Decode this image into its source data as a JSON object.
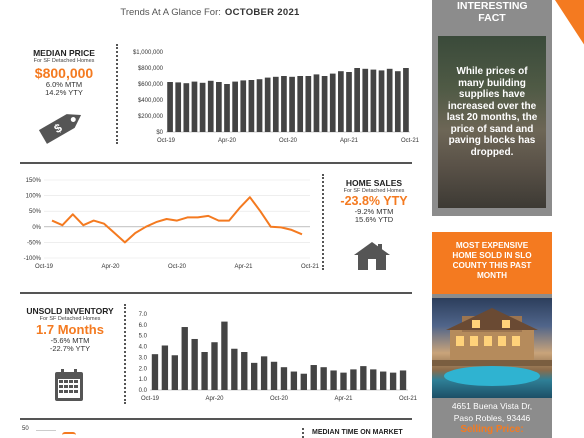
{
  "header": {
    "prefix": "Trends At A Glance For:",
    "month": "OCTOBER 2021"
  },
  "median_price": {
    "title": "MEDIAN PRICE",
    "subtitle": "For SF Detached Homes",
    "value": "$800,000",
    "mtm": "6.0% MTM",
    "ytd": "14.2% YTY",
    "icon": "price-tag-icon"
  },
  "home_sales": {
    "title": "HOME SALES",
    "subtitle": "For SF Detached Homes",
    "value": "-23.8% YTY",
    "mtm": "-9.2% MTM",
    "ytd": "15.6% YTD",
    "icon": "house-icon"
  },
  "unsold_inventory": {
    "title": "UNSOLD INVENTORY",
    "subtitle": "For SF Detached Homes",
    "value": "1.7 Months",
    "mtm": "-5.6% MTM",
    "ytd": "-22.7% YTY",
    "icon": "calendar-icon"
  },
  "median_time": {
    "title": "MEDIAN TIME ON MARKET",
    "axis_top": "50"
  },
  "sidebar": {
    "fact_title": "INTERESTING FACT",
    "fact_text": "While prices of many building supplies have increased over the last 20 months, the price of sand and paving blocks has dropped.",
    "expensive_title": "MOST EXPENSIVE HOME SOLD IN SLO COUNTY THIS PAST MONTH",
    "address_line1": "4651 Buena Vista Dr,",
    "address_line2": "Paso Robles, 93446",
    "selling_price_label": "Selling Price:"
  },
  "colors": {
    "accent": "#f47a20",
    "bar": "#444444",
    "sidebar_gray": "#8c8c8c"
  },
  "chart_data": [
    {
      "type": "bar",
      "name": "median-price",
      "x_tick_labels": [
        "Oct-19",
        "Apr-20",
        "Oct-20",
        "Apr-21",
        "Oct-21"
      ],
      "y_tick_labels": [
        "$0",
        "$200,000",
        "$400,000",
        "$600,000",
        "$800,000",
        "$1,000,000"
      ],
      "ylim": [
        0,
        1000000
      ],
      "values": [
        625000,
        620000,
        610000,
        630000,
        615000,
        640000,
        625000,
        600000,
        630000,
        645000,
        650000,
        660000,
        680000,
        690000,
        700000,
        690000,
        700000,
        700000,
        720000,
        700000,
        730000,
        760000,
        750000,
        800000,
        790000,
        780000,
        770000,
        790000,
        760000,
        800000
      ]
    },
    {
      "type": "line",
      "name": "home-sales",
      "x_tick_labels": [
        "Oct-19",
        "Apr-20",
        "Oct-20",
        "Apr-21",
        "Oct-21"
      ],
      "y_tick_labels": [
        "-100%",
        "-50%",
        "0%",
        "50%",
        "100%",
        "150%"
      ],
      "ylim": [
        -100,
        150
      ],
      "values": [
        20,
        5,
        40,
        5,
        20,
        10,
        -20,
        -50,
        -20,
        0,
        15,
        25,
        20,
        30,
        30,
        35,
        20,
        20,
        60,
        95,
        50,
        0,
        -2,
        -10,
        -24
      ]
    },
    {
      "type": "bar",
      "name": "unsold-inventory",
      "x_tick_labels": [
        "Oct-19",
        "Apr-20",
        "Oct-20",
        "Apr-21",
        "Oct-21"
      ],
      "y_tick_labels": [
        "0.0",
        "1.0",
        "2.0",
        "3.0",
        "4.0",
        "5.0",
        "6.0",
        "7.0"
      ],
      "ylim": [
        0,
        7
      ],
      "values": [
        3.3,
        4.1,
        3.2,
        5.8,
        4.7,
        3.5,
        4.4,
        6.3,
        3.8,
        3.5,
        2.5,
        3.1,
        2.6,
        2.1,
        1.7,
        1.5,
        2.3,
        2.1,
        1.8,
        1.6,
        1.9,
        2.2,
        1.9,
        1.7,
        1.6,
        1.8
      ]
    }
  ]
}
